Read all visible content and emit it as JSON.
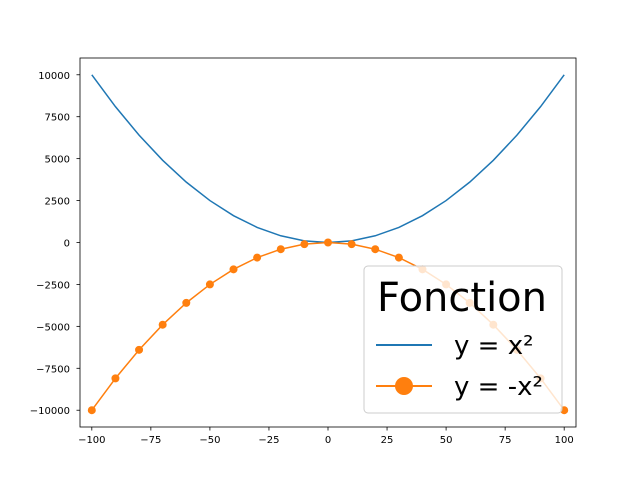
{
  "chart_data": {
    "type": "line",
    "xlim": [
      -105,
      105
    ],
    "ylim": [
      -11000,
      11000
    ],
    "x": [
      -100,
      -90,
      -80,
      -70,
      -60,
      -50,
      -40,
      -30,
      -20,
      -10,
      0,
      10,
      20,
      30,
      40,
      50,
      60,
      70,
      80,
      90,
      100
    ],
    "series": [
      {
        "name": "y = x²",
        "color": "#1f77b4",
        "marker": "none",
        "values": [
          10000,
          8100,
          6400,
          4900,
          3600,
          2500,
          1600,
          900,
          400,
          100,
          0,
          100,
          400,
          900,
          1600,
          2500,
          3600,
          4900,
          6400,
          8100,
          10000
        ]
      },
      {
        "name": "y = -x²",
        "color": "#ff7f0e",
        "marker": "circle",
        "values": [
          -10000,
          -8100,
          -6400,
          -4900,
          -3600,
          -2500,
          -1600,
          -900,
          -400,
          -100,
          0,
          -100,
          -400,
          -900,
          -1600,
          -2500,
          -3600,
          -4900,
          -6400,
          -8100,
          -10000
        ]
      }
    ],
    "xticks": [
      -100,
      -75,
      -50,
      -25,
      0,
      25,
      50,
      75,
      100
    ],
    "xtick_labels": [
      "−100",
      "−75",
      "−50",
      "−25",
      "0",
      "25",
      "50",
      "75",
      "100"
    ],
    "yticks": [
      10000,
      7500,
      5000,
      2500,
      0,
      -2500,
      -5000,
      -7500,
      -10000
    ],
    "ytick_labels": [
      "10000",
      "7500",
      "5000",
      "2500",
      "0",
      "−2500",
      "−5000",
      "−7500",
      "−10000"
    ],
    "grid": false,
    "legend": {
      "title": "Fonction",
      "position": "lower-right",
      "entries": [
        "y = x²",
        "y = -x²"
      ]
    }
  }
}
